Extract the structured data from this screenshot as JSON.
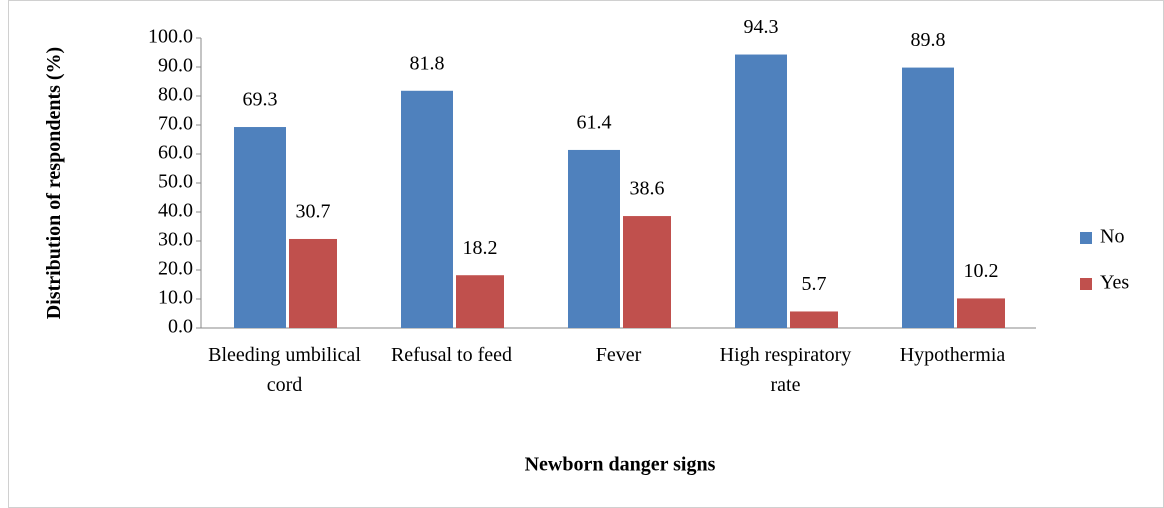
{
  "chart_data": {
    "type": "bar",
    "y_label": "Distribution of respondents (%)",
    "x_label": "Newborn danger signs",
    "categories": [
      "Bleeding umbilical cord",
      "Refusal to feed",
      "Fever",
      "High respiratory rate",
      "Hypothermia"
    ],
    "series": [
      {
        "name": "No",
        "color": "#4f81bd",
        "values": [
          69.3,
          81.8,
          61.4,
          94.3,
          89.8
        ]
      },
      {
        "name": "Yes",
        "color": "#c0504d",
        "values": [
          30.7,
          18.2,
          38.6,
          5.7,
          10.2
        ]
      }
    ],
    "ylim": [
      0,
      100
    ],
    "yticks": [
      {
        "value": 0,
        "label": "0.0"
      },
      {
        "value": 10,
        "label": "10.0"
      },
      {
        "value": 20,
        "label": "20.0"
      },
      {
        "value": 30,
        "label": "30.0"
      },
      {
        "value": 40,
        "label": "40.0"
      },
      {
        "value": 50,
        "label": "50.0"
      },
      {
        "value": 60,
        "label": "60.0"
      },
      {
        "value": 70,
        "label": "70.0"
      },
      {
        "value": 80,
        "label": "80.0"
      },
      {
        "value": 90,
        "label": "90.0"
      },
      {
        "value": 100,
        "label": "100.0"
      }
    ],
    "legend": "right"
  }
}
